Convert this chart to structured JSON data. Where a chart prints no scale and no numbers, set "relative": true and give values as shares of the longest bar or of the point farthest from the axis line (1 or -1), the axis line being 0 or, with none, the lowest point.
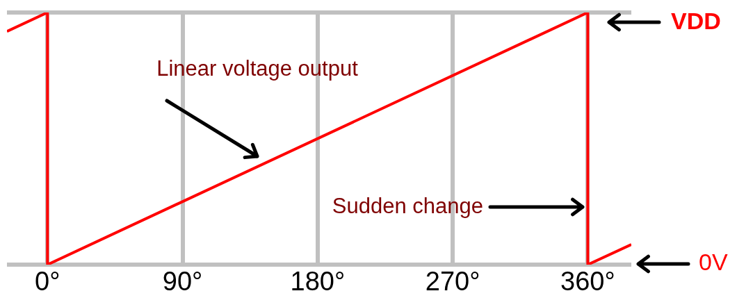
{
  "chart_data": {
    "type": "line",
    "x": [
      -27,
      0,
      0,
      360,
      360,
      389
    ],
    "series": [
      {
        "color": "#ff0000",
        "values": [
          0.925,
          1,
          0,
          1,
          0,
          0.08
        ]
      }
    ],
    "relative": true,
    "xlim": [
      -27,
      389
    ],
    "xticks": [
      {
        "value": 0,
        "label": "0°"
      },
      {
        "value": 90,
        "label": "90°"
      },
      {
        "value": 180,
        "label": "180°"
      },
      {
        "value": 270,
        "label": "270°"
      },
      {
        "value": 360,
        "label": "360°"
      }
    ],
    "grid": true,
    "legend": false,
    "marker": "none",
    "line_style": "solid",
    "annotations": [
      "Linear voltage output",
      "Sudden change",
      "VDD",
      "0V"
    ]
  }
}
